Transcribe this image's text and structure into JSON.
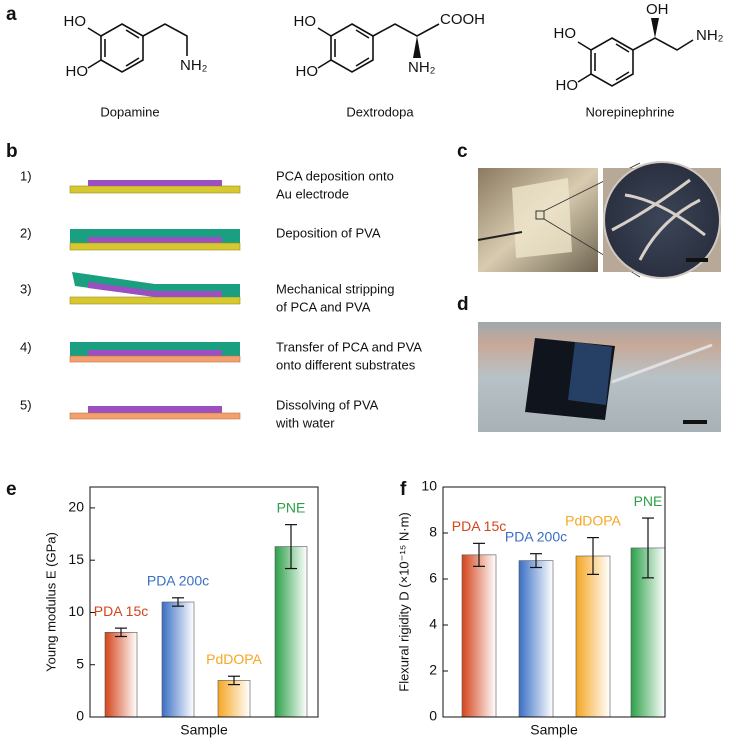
{
  "panel_labels": [
    "a",
    "b",
    "c",
    "d",
    "e",
    "f"
  ],
  "molecules": [
    {
      "name": "Dopamine",
      "atoms": [
        "HO",
        "HO",
        "NH₂"
      ]
    },
    {
      "name": "Dextrodopa",
      "atoms": [
        "HO",
        "HO",
        "COOH",
        "NH₂"
      ]
    },
    {
      "name": "Norepinephrine",
      "atoms": [
        "OH",
        "HO",
        "HO",
        "NH₂"
      ]
    }
  ],
  "steps": [
    {
      "number": "1)",
      "lines": [
        "PCA deposition onto",
        "Au electrode"
      ]
    },
    {
      "number": "2)",
      "lines": [
        "Deposition of PVA"
      ]
    },
    {
      "number": "3)",
      "lines": [
        "Mechanical stripping",
        "of PCA and PVA"
      ]
    },
    {
      "number": "4)",
      "lines": [
        "Transfer of PCA and PVA",
        "onto different substrates"
      ]
    },
    {
      "number": "5)",
      "lines": [
        "Dissolving of PVA",
        "with water"
      ]
    }
  ],
  "chart_data": [
    {
      "type": "bar",
      "y_label": "Young modulus E (GPa)",
      "x_label": "Sample",
      "categories": [
        "PDA 15c",
        "PDA 200c",
        "PdDOPA",
        "PNE"
      ],
      "values": [
        8.1,
        11.0,
        3.5,
        16.3
      ],
      "errors": [
        0.4,
        0.4,
        0.4,
        2.1
      ],
      "colors": [
        "#d4441c",
        "#3a6fc4",
        "#f5a623",
        "#2ca048"
      ],
      "ylim": [
        0,
        22
      ],
      "yticks": [
        0,
        5,
        10,
        15,
        20
      ]
    },
    {
      "type": "bar",
      "y_label": "Flexural rigidity D (×10⁻¹⁵ N·m)",
      "x_label": "Sample",
      "categories": [
        "PDA 15c",
        "PDA 200c",
        "PdDOPA",
        "PNE"
      ],
      "values": [
        7.05,
        6.8,
        7.0,
        7.35
      ],
      "errors": [
        0.5,
        0.3,
        0.8,
        1.3
      ],
      "colors": [
        "#d4441c",
        "#3a6fc4",
        "#f5a623",
        "#2ca048"
      ],
      "ylim": [
        0,
        10
      ],
      "yticks": [
        0,
        2,
        4,
        6,
        8,
        10
      ]
    }
  ]
}
